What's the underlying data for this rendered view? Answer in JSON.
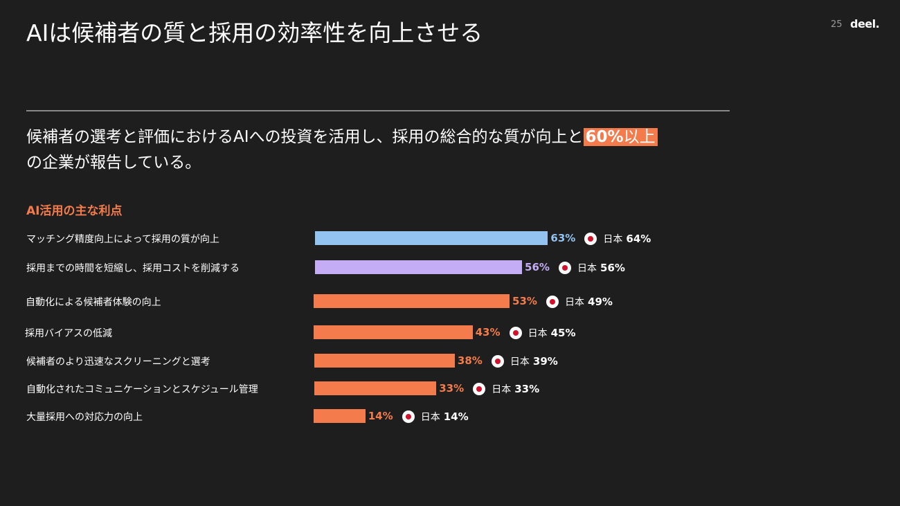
{
  "header": {
    "title": "AIは候補者の質と採用の効率性を向上させる",
    "page_number": "25",
    "logo": "deel."
  },
  "subtitle": {
    "text_before": "候補者の選考と評価におけるAIへの投資を活用し、採用の総合的な質が向上と",
    "highlight_value": "60%",
    "highlight_text": "以上",
    "text_after": "の企業が報告している。"
  },
  "colors": {
    "background": "#1e1e1e",
    "accent": "#f47c4c",
    "blue": "#93c4f1",
    "purple": "#c4adf5",
    "flag_red": "#d1122a"
  },
  "chart_data": {
    "type": "bar",
    "orientation": "horizontal",
    "title": "AI活用の主な利点",
    "categories": [
      "マッチング精度向上によって採用の質が向上",
      "採用までの時間を短縮し、採用コストを削減する",
      "自動化による候補者体験の向上",
      "採用バイアスの低減",
      "候補者のより迅速なスクリーニングと選考",
      "自動化されたコミュニケーションとスケジュール管理",
      "大量採用への対応力の向上"
    ],
    "values": [
      63,
      56,
      53,
      43,
      38,
      33,
      14
    ],
    "value_labels": [
      "63%",
      "56%",
      "53%",
      "43%",
      "38%",
      "33%",
      "14%"
    ],
    "bar_colors": [
      "#93c4f1",
      "#c4adf5",
      "#f47c4c",
      "#f47c4c",
      "#f47c4c",
      "#f47c4c",
      "#f47c4c"
    ],
    "comparison": {
      "country": "日本",
      "values": [
        64,
        56,
        49,
        45,
        39,
        33,
        14
      ],
      "value_labels": [
        "64%",
        "56%",
        "49%",
        "45%",
        "39%",
        "33%",
        "14%"
      ]
    }
  }
}
